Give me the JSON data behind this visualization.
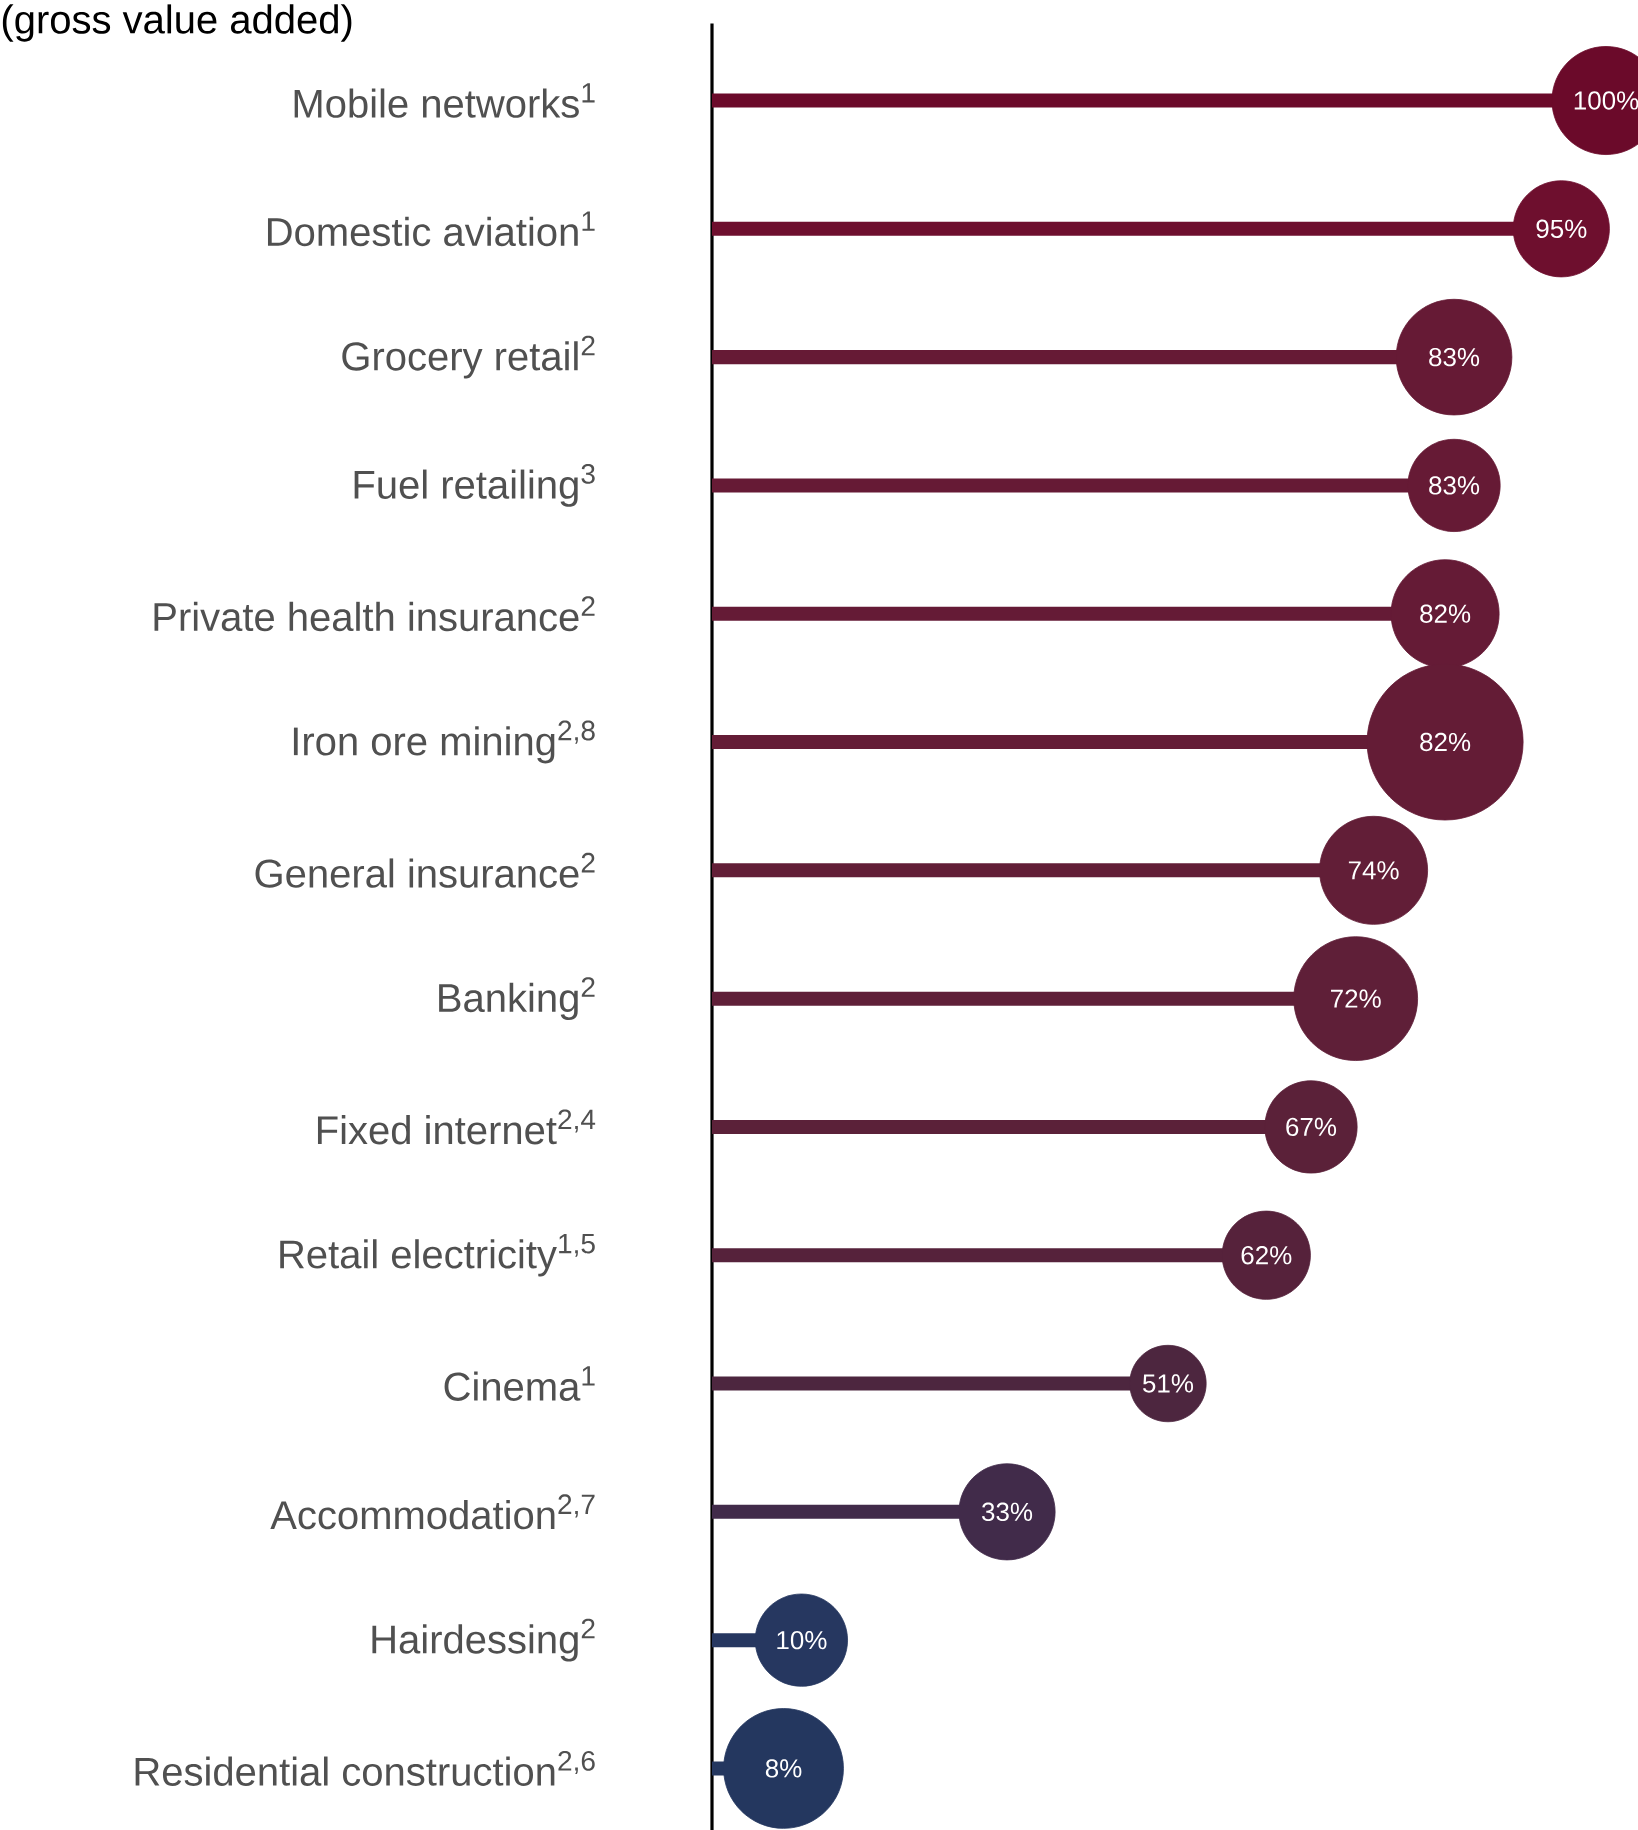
{
  "chart_data": {
    "type": "lollipop",
    "orientation": "horizontal",
    "title": "(gross value added)",
    "categories": [
      "Mobile networks$^{1}$",
      "Domestic aviation$^{1}$",
      "Grocery retail$^{2}$",
      "Fuel retailing$^{3}$",
      "Private health insurance$^{2}$",
      "Iron ore mining$^{2,8}$",
      "General insurance$^{2}$",
      "Banking$^{2}$",
      "Fixed internet$^{2,4}$",
      "Retail electricity$^{1,5}$",
      "Cinema$^{1}$",
      "Accommodation$^{2,7}$",
      "Hairdessing$^{2}$",
      "Residential construction$^{2,6}$"
    ],
    "values": [
      100,
      95,
      83,
      83,
      82,
      82,
      74,
      72,
      67,
      62,
      51,
      33,
      10,
      8
    ],
    "value_labels": [
      "100%",
      "95%",
      "83%",
      "83%",
      "82%",
      "82%",
      "74%",
      "72%",
      "67%",
      "62%",
      "51%",
      "33%",
      "10%",
      "8%"
    ],
    "sizes": [
      0.48,
      0.38,
      0.55,
      0.35,
      0.48,
      1,
      0.48,
      0.63,
      0.35,
      0.32,
      0.24,
      0.38,
      0.35,
      0.59
    ],
    "colors": [
      "#6b0a2a",
      "#6e0f2e",
      "#661a35",
      "#661a35",
      "#651b36",
      "#641c36",
      "#621e37",
      "#5f1f38",
      "#5b2139",
      "#56223b",
      "#4d263f",
      "#412b4a",
      "#263760",
      "#24375f"
    ],
    "tick_labels": "y"
  }
}
